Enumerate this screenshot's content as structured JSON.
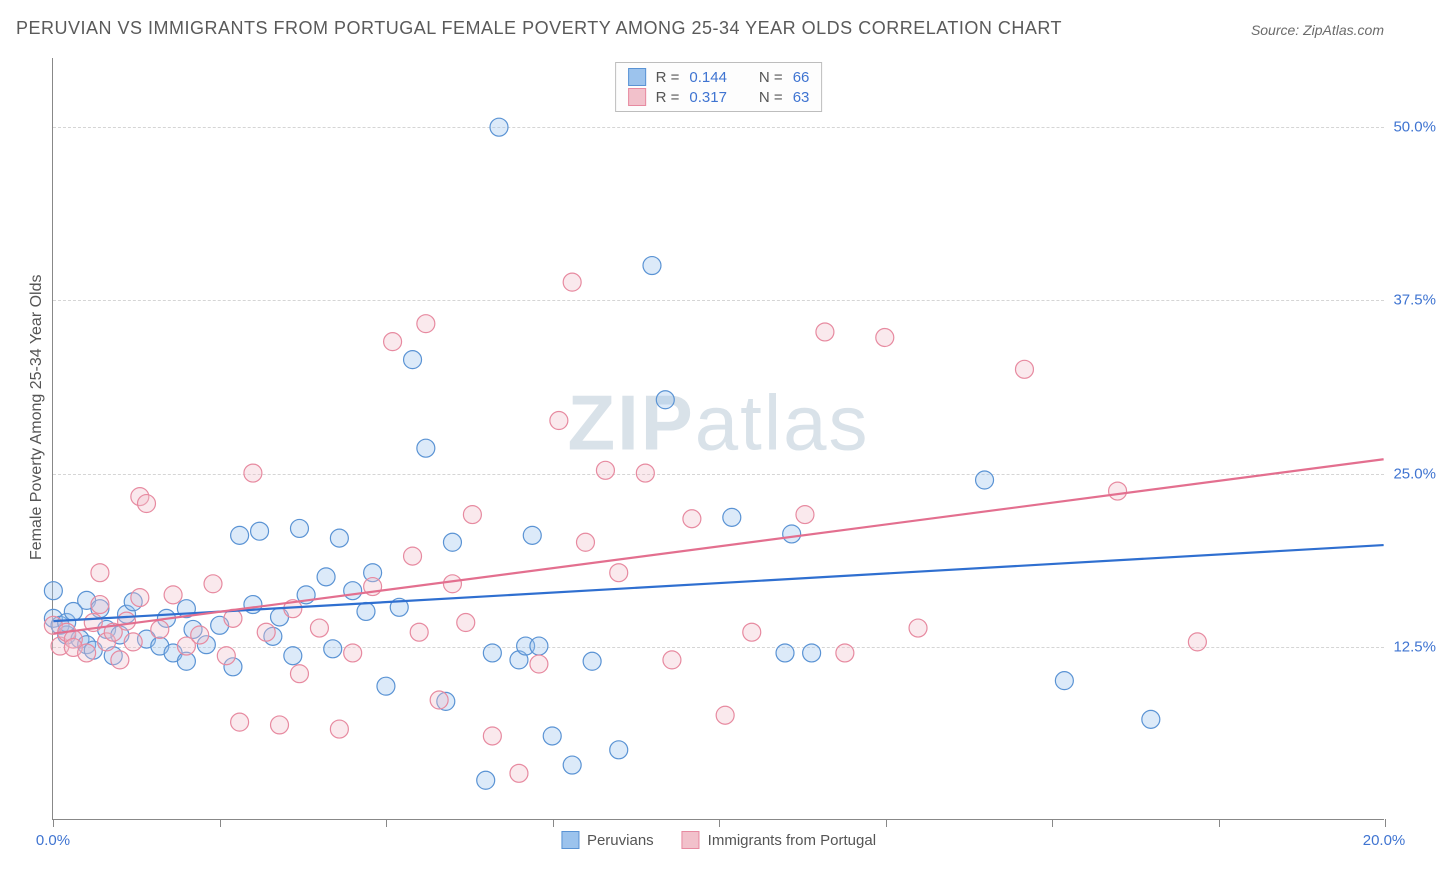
{
  "title": "PERUVIAN VS IMMIGRANTS FROM PORTUGAL FEMALE POVERTY AMONG 25-34 YEAR OLDS CORRELATION CHART",
  "source": "Source: ZipAtlas.com",
  "watermark_a": "ZIP",
  "watermark_b": "atlas",
  "y_axis_label": "Female Poverty Among 25-34 Year Olds",
  "chart": {
    "type": "scatter",
    "background_color": "#ffffff",
    "grid_color": "#d5d5d5",
    "axis_color": "#888888",
    "xlim": [
      0,
      20
    ],
    "ylim": [
      0,
      55
    ],
    "x_ticks": [
      0,
      2.5,
      5,
      7.5,
      10,
      12.5,
      15,
      17.5,
      20
    ],
    "y_grid": [
      12.5,
      25,
      37.5,
      50
    ],
    "y_tick_labels": [
      "12.5%",
      "25.0%",
      "37.5%",
      "50.0%"
    ],
    "x_min_label": "0.0%",
    "x_max_label": "20.0%",
    "marker_radius": 9,
    "marker_stroke_width": 1.2,
    "marker_fill_opacity": 0.35,
    "trend_line_width": 2.2
  },
  "series": [
    {
      "id": "peruvians",
      "label": "Peruvians",
      "color_fill": "#9cc3ed",
      "color_stroke": "#5a93d4",
      "trend_color": "#2f6fd0",
      "R": "0.144",
      "N": "66",
      "trend": {
        "x1": 0,
        "y1": 14.3,
        "x2": 20,
        "y2": 19.8
      },
      "points": [
        [
          0.0,
          14.5
        ],
        [
          0.0,
          16.5
        ],
        [
          0.1,
          14.0
        ],
        [
          0.2,
          13.3
        ],
        [
          0.2,
          14.2
        ],
        [
          0.3,
          15.0
        ],
        [
          0.4,
          13.0
        ],
        [
          0.5,
          15.8
        ],
        [
          0.5,
          12.6
        ],
        [
          0.6,
          12.2
        ],
        [
          0.7,
          15.2
        ],
        [
          0.8,
          13.7
        ],
        [
          0.9,
          11.8
        ],
        [
          1.0,
          13.3
        ],
        [
          1.1,
          14.8
        ],
        [
          1.2,
          15.7
        ],
        [
          1.4,
          13.0
        ],
        [
          1.6,
          12.5
        ],
        [
          1.7,
          14.5
        ],
        [
          1.8,
          12.0
        ],
        [
          2.0,
          11.4
        ],
        [
          2.0,
          15.2
        ],
        [
          2.1,
          13.7
        ],
        [
          2.3,
          12.6
        ],
        [
          2.5,
          14.0
        ],
        [
          2.7,
          11.0
        ],
        [
          2.8,
          20.5
        ],
        [
          3.0,
          15.5
        ],
        [
          3.1,
          20.8
        ],
        [
          3.3,
          13.2
        ],
        [
          3.4,
          14.6
        ],
        [
          3.6,
          11.8
        ],
        [
          3.7,
          21.0
        ],
        [
          3.8,
          16.2
        ],
        [
          4.1,
          17.5
        ],
        [
          4.2,
          12.3
        ],
        [
          4.3,
          20.3
        ],
        [
          4.5,
          16.5
        ],
        [
          4.7,
          15.0
        ],
        [
          4.8,
          17.8
        ],
        [
          5.0,
          9.6
        ],
        [
          5.2,
          15.3
        ],
        [
          5.4,
          33.2
        ],
        [
          5.6,
          26.8
        ],
        [
          5.9,
          8.5
        ],
        [
          6.0,
          20.0
        ],
        [
          6.5,
          2.8
        ],
        [
          6.6,
          12.0
        ],
        [
          6.7,
          50.0
        ],
        [
          7.0,
          11.5
        ],
        [
          7.1,
          12.5
        ],
        [
          7.2,
          20.5
        ],
        [
          7.3,
          12.5
        ],
        [
          7.5,
          6.0
        ],
        [
          7.8,
          3.9
        ],
        [
          8.1,
          11.4
        ],
        [
          8.5,
          5.0
        ],
        [
          9.0,
          40.0
        ],
        [
          9.2,
          30.3
        ],
        [
          10.2,
          21.8
        ],
        [
          11.0,
          12.0
        ],
        [
          11.1,
          20.6
        ],
        [
          11.4,
          12.0
        ],
        [
          14.0,
          24.5
        ],
        [
          15.2,
          10.0
        ],
        [
          16.5,
          7.2
        ]
      ]
    },
    {
      "id": "portugal",
      "label": "Immigrants from Portugal",
      "color_fill": "#f2c1cb",
      "color_stroke": "#e78aa0",
      "trend_color": "#e36f8f",
      "R": "0.317",
      "N": "63",
      "trend": {
        "x1": 0,
        "y1": 13.4,
        "x2": 20,
        "y2": 26.0
      },
      "points": [
        [
          0.0,
          14.0
        ],
        [
          0.1,
          12.5
        ],
        [
          0.2,
          13.5
        ],
        [
          0.3,
          13.0
        ],
        [
          0.3,
          12.4
        ],
        [
          0.5,
          12.0
        ],
        [
          0.6,
          14.2
        ],
        [
          0.7,
          15.5
        ],
        [
          0.7,
          17.8
        ],
        [
          0.8,
          12.8
        ],
        [
          0.9,
          13.5
        ],
        [
          1.0,
          11.5
        ],
        [
          1.1,
          14.3
        ],
        [
          1.2,
          12.8
        ],
        [
          1.3,
          16.0
        ],
        [
          1.3,
          23.3
        ],
        [
          1.4,
          22.8
        ],
        [
          1.6,
          13.7
        ],
        [
          1.8,
          16.2
        ],
        [
          2.0,
          12.5
        ],
        [
          2.2,
          13.3
        ],
        [
          2.4,
          17.0
        ],
        [
          2.6,
          11.8
        ],
        [
          2.7,
          14.5
        ],
        [
          2.8,
          7.0
        ],
        [
          3.0,
          25.0
        ],
        [
          3.2,
          13.5
        ],
        [
          3.4,
          6.8
        ],
        [
          3.6,
          15.2
        ],
        [
          3.7,
          10.5
        ],
        [
          4.0,
          13.8
        ],
        [
          4.3,
          6.5
        ],
        [
          4.5,
          12.0
        ],
        [
          4.8,
          16.8
        ],
        [
          5.1,
          34.5
        ],
        [
          5.4,
          19.0
        ],
        [
          5.5,
          13.5
        ],
        [
          5.6,
          35.8
        ],
        [
          5.8,
          8.6
        ],
        [
          6.0,
          17.0
        ],
        [
          6.2,
          14.2
        ],
        [
          6.6,
          6.0
        ],
        [
          7.0,
          3.3
        ],
        [
          7.3,
          11.2
        ],
        [
          7.6,
          28.8
        ],
        [
          7.8,
          38.8
        ],
        [
          8.0,
          20.0
        ],
        [
          8.3,
          25.2
        ],
        [
          8.5,
          17.8
        ],
        [
          8.9,
          25.0
        ],
        [
          9.3,
          11.5
        ],
        [
          9.6,
          21.7
        ],
        [
          10.1,
          7.5
        ],
        [
          10.5,
          13.5
        ],
        [
          11.3,
          22.0
        ],
        [
          11.6,
          35.2
        ],
        [
          12.5,
          34.8
        ],
        [
          13.0,
          13.8
        ],
        [
          14.6,
          32.5
        ],
        [
          16.0,
          23.7
        ],
        [
          17.2,
          12.8
        ],
        [
          11.9,
          12.0
        ],
        [
          6.3,
          22.0
        ]
      ]
    }
  ],
  "legend_top": {
    "R_label": "R =",
    "N_label": "N ="
  }
}
